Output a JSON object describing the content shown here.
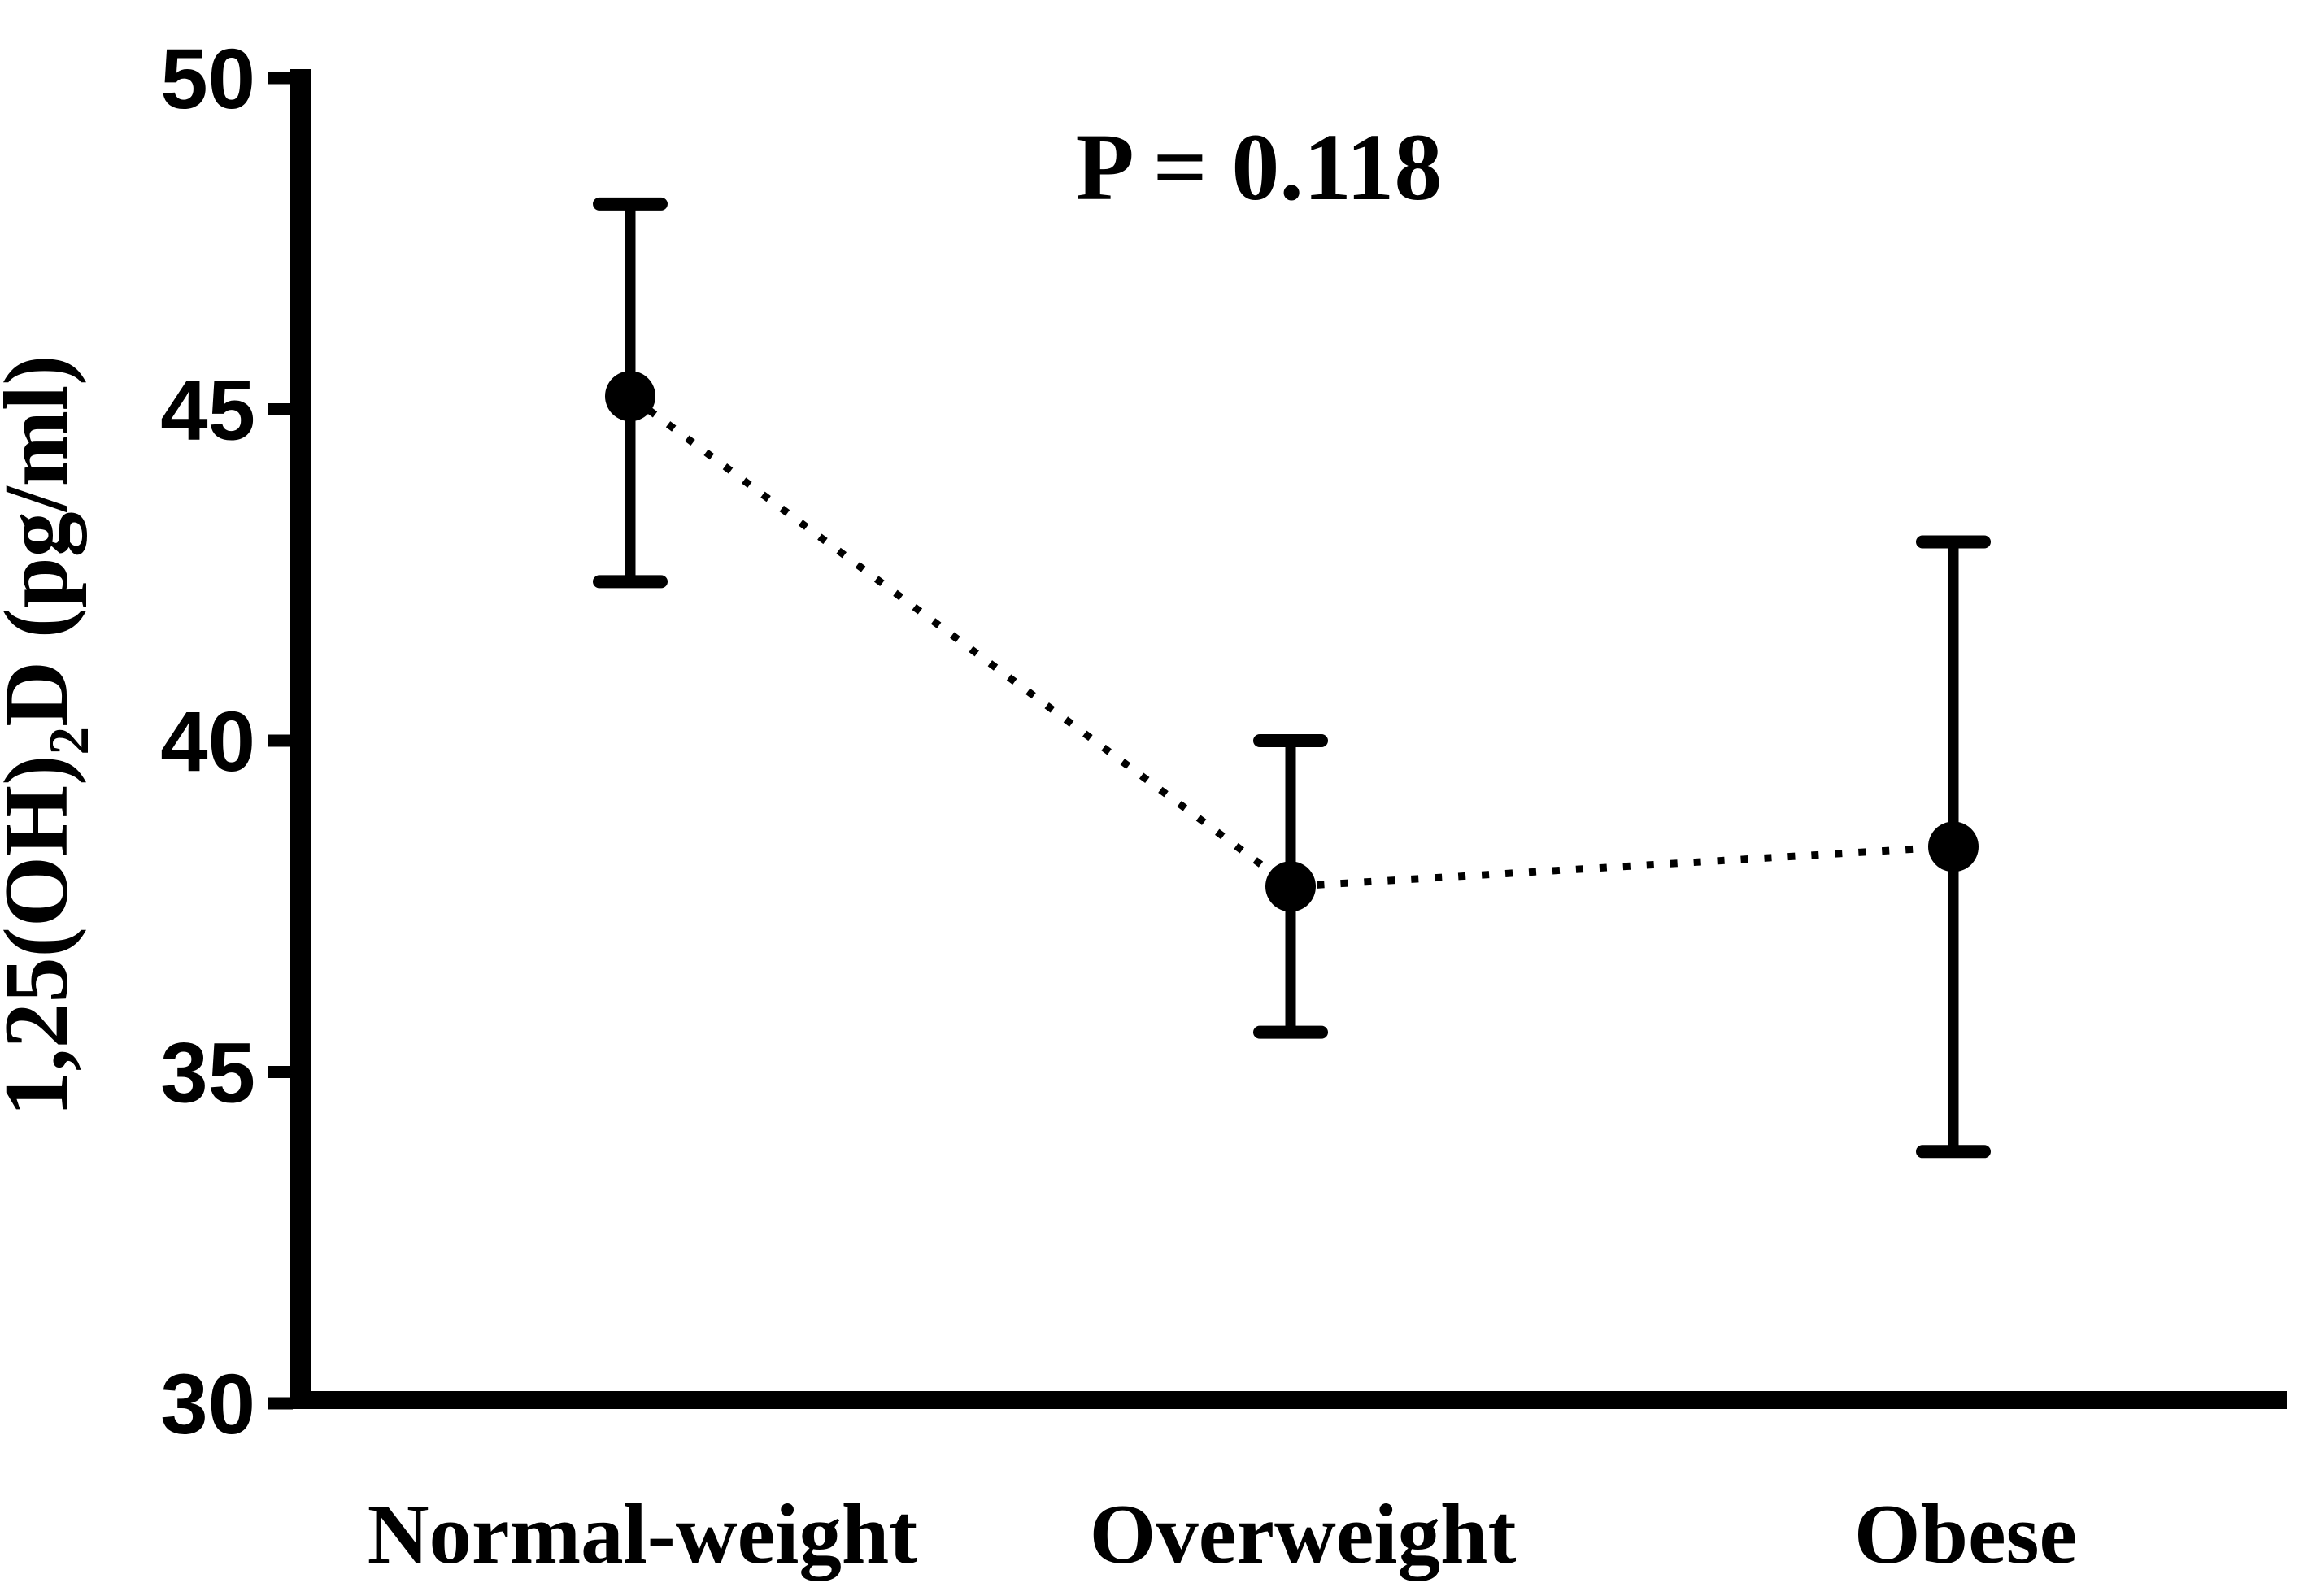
{
  "figure": {
    "background": "#ffffff",
    "annotation": "P = 0.118"
  },
  "chart_data": {
    "type": "scatter",
    "title": "",
    "annotation": "P = 0.118",
    "categories": [
      "Normal-weight",
      "Overweight",
      "Obese"
    ],
    "values": [
      45.2,
      37.8,
      38.4
    ],
    "error_low": [
      42.4,
      35.6,
      33.8
    ],
    "error_high": [
      48.1,
      40.0,
      43.0
    ],
    "ylabel_plain": "1,25(OH)2D (pg/ml)",
    "ylabel_parts": {
      "prefix": "1,25(OH)",
      "sub": "2",
      "suffix": "D (pg/ml)"
    },
    "xlabel": "",
    "ylim": [
      30,
      50
    ],
    "yticks": [
      50,
      45,
      40,
      35,
      30
    ],
    "ytick_labels": [
      "50",
      "45",
      "40",
      "35",
      "30"
    ],
    "line_style": "dotted",
    "marker": "filled-circle",
    "color": "#000000",
    "grid": "off",
    "legend": "none"
  }
}
